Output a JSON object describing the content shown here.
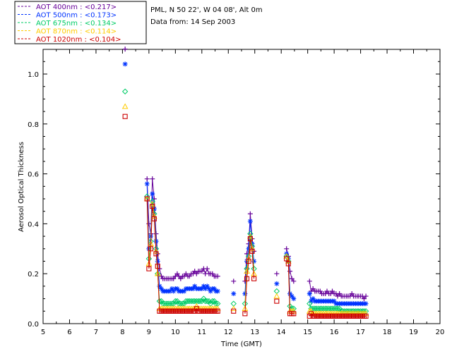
{
  "header": {
    "station": "PML, N 50 22', W 04 08', Alt 0m",
    "date_line": "Data from: 14 Sep 2003"
  },
  "chart_data": {
    "type": "scatter",
    "xlabel": "Time (GMT)",
    "ylabel": "Aerosol Optical Thickness",
    "xlim": [
      5,
      20
    ],
    "ylim": [
      0,
      1.1
    ],
    "xticks": [
      "5",
      "6",
      "7",
      "8",
      "9",
      "10",
      "11",
      "12",
      "13",
      "14",
      "15",
      "16",
      "17",
      "18",
      "19",
      "20"
    ],
    "yticks": [
      "0.0",
      "0.2",
      "0.4",
      "0.6",
      "0.8",
      "1.0"
    ],
    "legend_position": "top-left, outside plot",
    "series": [
      {
        "name": "AOT  400nm : <0.217>",
        "color": "#660099",
        "marker": "plus",
        "x": [
          8.1,
          8.93,
          9.0,
          9.07,
          9.13,
          9.2,
          9.27,
          9.33,
          9.4,
          9.47,
          9.53,
          9.6,
          9.67,
          9.73,
          9.8,
          9.87,
          9.93,
          10.0,
          10.07,
          10.13,
          10.2,
          10.27,
          10.33,
          10.4,
          10.47,
          10.53,
          10.6,
          10.67,
          10.73,
          10.8,
          10.87,
          10.93,
          11.0,
          11.07,
          11.13,
          11.2,
          11.27,
          11.33,
          11.4,
          11.47,
          11.53,
          11.6,
          12.2,
          12.63,
          12.7,
          12.77,
          12.83,
          12.9,
          12.97,
          13.83,
          14.2,
          14.27,
          14.33,
          14.4,
          14.47,
          15.07,
          15.13,
          15.2,
          15.27,
          15.33,
          15.4,
          15.47,
          15.53,
          15.6,
          15.67,
          15.73,
          15.8,
          15.87,
          15.93,
          16.0,
          16.07,
          16.13,
          16.2,
          16.27,
          16.33,
          16.4,
          16.47,
          16.53,
          16.6,
          16.67,
          16.73,
          16.8,
          16.87,
          16.93,
          17.0,
          17.07,
          17.13,
          17.2
        ],
        "y": [
          1.1,
          0.58,
          0.4,
          0.36,
          0.58,
          0.5,
          0.36,
          0.28,
          0.22,
          0.19,
          0.18,
          0.18,
          0.18,
          0.18,
          0.18,
          0.18,
          0.18,
          0.19,
          0.2,
          0.19,
          0.18,
          0.19,
          0.19,
          0.2,
          0.19,
          0.19,
          0.2,
          0.2,
          0.21,
          0.2,
          0.21,
          0.21,
          0.21,
          0.22,
          0.2,
          0.22,
          0.2,
          0.2,
          0.2,
          0.19,
          0.19,
          0.19,
          0.17,
          0.17,
          0.28,
          0.32,
          0.44,
          0.34,
          0.29,
          0.2,
          0.3,
          0.27,
          0.21,
          0.18,
          0.17,
          0.17,
          0.13,
          0.14,
          0.13,
          0.13,
          0.13,
          0.13,
          0.12,
          0.12,
          0.12,
          0.13,
          0.12,
          0.12,
          0.13,
          0.12,
          0.12,
          0.11,
          0.12,
          0.11,
          0.11,
          0.11,
          0.11,
          0.11,
          0.11,
          0.12,
          0.11,
          0.11,
          0.11,
          0.11,
          0.11,
          0.11,
          0.1,
          0.11
        ]
      },
      {
        "name": "AOT  500nm : <0.173>",
        "color": "#0033ff",
        "marker": "asterisk",
        "x": [
          8.1,
          8.93,
          9.0,
          9.07,
          9.13,
          9.2,
          9.27,
          9.33,
          9.4,
          9.47,
          9.53,
          9.6,
          9.67,
          9.73,
          9.8,
          9.87,
          9.93,
          10.0,
          10.07,
          10.13,
          10.2,
          10.27,
          10.33,
          10.4,
          10.47,
          10.53,
          10.6,
          10.67,
          10.73,
          10.8,
          10.87,
          10.93,
          11.0,
          11.07,
          11.13,
          11.2,
          11.27,
          11.33,
          11.4,
          11.47,
          11.53,
          11.6,
          12.2,
          12.63,
          12.7,
          12.77,
          12.83,
          12.9,
          12.97,
          13.83,
          14.2,
          14.27,
          14.33,
          14.4,
          14.47,
          15.07,
          15.13,
          15.2,
          15.27,
          15.33,
          15.4,
          15.47,
          15.53,
          15.6,
          15.67,
          15.73,
          15.8,
          15.87,
          15.93,
          16.0,
          16.07,
          16.13,
          16.2,
          16.27,
          16.33,
          16.4,
          16.47,
          16.53,
          16.6,
          16.67,
          16.73,
          16.8,
          16.87,
          16.93,
          17.0,
          17.07,
          17.13,
          17.2
        ],
        "y": [
          1.04,
          0.56,
          0.3,
          0.35,
          0.52,
          0.46,
          0.33,
          0.25,
          0.15,
          0.14,
          0.13,
          0.13,
          0.13,
          0.13,
          0.13,
          0.14,
          0.13,
          0.14,
          0.14,
          0.13,
          0.13,
          0.13,
          0.13,
          0.14,
          0.14,
          0.14,
          0.14,
          0.14,
          0.15,
          0.14,
          0.14,
          0.14,
          0.14,
          0.15,
          0.14,
          0.15,
          0.14,
          0.13,
          0.14,
          0.14,
          0.13,
          0.13,
          0.12,
          0.12,
          0.25,
          0.3,
          0.41,
          0.32,
          0.25,
          0.16,
          0.28,
          0.26,
          0.12,
          0.11,
          0.1,
          0.12,
          0.09,
          0.1,
          0.09,
          0.09,
          0.09,
          0.09,
          0.09,
          0.09,
          0.09,
          0.09,
          0.09,
          0.09,
          0.09,
          0.09,
          0.08,
          0.08,
          0.08,
          0.08,
          0.08,
          0.08,
          0.08,
          0.08,
          0.08,
          0.08,
          0.08,
          0.08,
          0.08,
          0.08,
          0.08,
          0.08,
          0.08,
          0.08
        ]
      },
      {
        "name": "AOT  675nm : <0.134>",
        "color": "#00cc66",
        "marker": "diamond",
        "x": [
          8.1,
          8.93,
          9.0,
          9.07,
          9.13,
          9.2,
          9.27,
          9.33,
          9.4,
          9.47,
          9.53,
          9.6,
          9.67,
          9.73,
          9.8,
          9.87,
          9.93,
          10.0,
          10.07,
          10.13,
          10.2,
          10.27,
          10.33,
          10.4,
          10.47,
          10.53,
          10.6,
          10.67,
          10.73,
          10.8,
          10.87,
          10.93,
          11.0,
          11.07,
          11.13,
          11.2,
          11.27,
          11.33,
          11.4,
          11.47,
          11.53,
          11.6,
          12.2,
          12.63,
          12.7,
          12.77,
          12.83,
          12.9,
          12.97,
          13.83,
          14.2,
          14.27,
          14.33,
          14.4,
          14.47,
          15.07,
          15.13,
          15.2,
          15.27,
          15.33,
          15.4,
          15.47,
          15.53,
          15.6,
          15.67,
          15.73,
          15.8,
          15.87,
          15.93,
          16.0,
          16.07,
          16.13,
          16.2,
          16.27,
          16.33,
          16.4,
          16.47,
          16.53,
          16.6,
          16.67,
          16.73,
          16.8,
          16.87,
          16.93,
          17.0,
          17.07,
          17.13,
          17.2
        ],
        "y": [
          0.93,
          0.51,
          0.26,
          0.33,
          0.49,
          0.44,
          0.3,
          0.2,
          0.09,
          0.09,
          0.08,
          0.08,
          0.08,
          0.08,
          0.08,
          0.08,
          0.08,
          0.09,
          0.09,
          0.08,
          0.08,
          0.08,
          0.08,
          0.09,
          0.09,
          0.09,
          0.09,
          0.09,
          0.09,
          0.09,
          0.09,
          0.09,
          0.09,
          0.1,
          0.09,
          0.09,
          0.09,
          0.08,
          0.09,
          0.09,
          0.08,
          0.08,
          0.08,
          0.08,
          0.22,
          0.27,
          0.36,
          0.31,
          0.22,
          0.13,
          0.27,
          0.25,
          0.07,
          0.06,
          0.06,
          0.08,
          0.06,
          0.06,
          0.06,
          0.06,
          0.06,
          0.06,
          0.06,
          0.06,
          0.06,
          0.06,
          0.06,
          0.06,
          0.06,
          0.06,
          0.06,
          0.06,
          0.06,
          0.05,
          0.05,
          0.05,
          0.05,
          0.05,
          0.05,
          0.05,
          0.05,
          0.05,
          0.05,
          0.05,
          0.05,
          0.05,
          0.05,
          0.05
        ]
      },
      {
        "name": "AOT  870nm : <0.114>",
        "color": "#ffcc00",
        "marker": "triangle",
        "x": [
          8.1,
          8.93,
          9.0,
          9.07,
          9.13,
          9.2,
          9.27,
          9.33,
          9.4,
          9.47,
          9.53,
          9.6,
          9.67,
          9.73,
          9.8,
          9.87,
          9.93,
          10.0,
          10.07,
          10.13,
          10.2,
          10.27,
          10.33,
          10.4,
          10.47,
          10.53,
          10.6,
          10.67,
          10.73,
          10.8,
          10.87,
          10.93,
          11.0,
          11.07,
          11.13,
          11.2,
          11.27,
          11.33,
          11.4,
          11.47,
          11.53,
          11.6,
          12.2,
          12.63,
          12.7,
          12.77,
          12.83,
          12.9,
          12.97,
          13.83,
          14.2,
          14.27,
          14.33,
          14.4,
          14.47,
          15.07,
          15.13,
          15.2,
          15.27,
          15.33,
          15.4,
          15.47,
          15.53,
          15.6,
          15.67,
          15.73,
          15.8,
          15.87,
          15.93,
          16.0,
          16.07,
          16.13,
          16.2,
          16.27,
          16.33,
          16.4,
          16.47,
          16.53,
          16.6,
          16.67,
          16.73,
          16.8,
          16.87,
          16.93,
          17.0,
          17.07,
          17.13,
          17.2
        ],
        "y": [
          0.87,
          0.5,
          0.24,
          0.32,
          0.48,
          0.43,
          0.29,
          0.2,
          0.06,
          0.06,
          0.06,
          0.06,
          0.06,
          0.06,
          0.06,
          0.06,
          0.06,
          0.06,
          0.06,
          0.06,
          0.06,
          0.06,
          0.06,
          0.06,
          0.06,
          0.06,
          0.06,
          0.06,
          0.06,
          0.07,
          0.06,
          0.06,
          0.06,
          0.06,
          0.06,
          0.06,
          0.06,
          0.06,
          0.06,
          0.06,
          0.06,
          0.06,
          0.06,
          0.06,
          0.21,
          0.26,
          0.35,
          0.3,
          0.2,
          0.11,
          0.27,
          0.25,
          0.05,
          0.05,
          0.05,
          0.05,
          0.05,
          0.04,
          0.04,
          0.04,
          0.04,
          0.04,
          0.04,
          0.04,
          0.04,
          0.04,
          0.04,
          0.04,
          0.04,
          0.04,
          0.04,
          0.04,
          0.04,
          0.04,
          0.04,
          0.04,
          0.04,
          0.04,
          0.04,
          0.04,
          0.04,
          0.04,
          0.04,
          0.04,
          0.04,
          0.04,
          0.04,
          0.04
        ]
      },
      {
        "name": "AOT 1020nm : <0.104>",
        "color": "#cc0000",
        "marker": "square",
        "x": [
          8.1,
          8.93,
          9.0,
          9.07,
          9.13,
          9.2,
          9.27,
          9.33,
          9.4,
          9.47,
          9.53,
          9.6,
          9.67,
          9.73,
          9.8,
          9.87,
          9.93,
          10.0,
          10.07,
          10.13,
          10.2,
          10.27,
          10.33,
          10.4,
          10.47,
          10.53,
          10.6,
          10.67,
          10.73,
          10.8,
          10.87,
          10.93,
          11.0,
          11.07,
          11.13,
          11.2,
          11.27,
          11.33,
          11.4,
          11.47,
          11.53,
          11.6,
          12.2,
          12.63,
          12.7,
          12.77,
          12.83,
          12.9,
          12.97,
          13.83,
          14.2,
          14.27,
          14.33,
          14.4,
          14.47,
          15.07,
          15.13,
          15.2,
          15.27,
          15.33,
          15.4,
          15.47,
          15.53,
          15.6,
          15.67,
          15.73,
          15.8,
          15.87,
          15.93,
          16.0,
          16.07,
          16.13,
          16.2,
          16.27,
          16.33,
          16.4,
          16.47,
          16.53,
          16.6,
          16.67,
          16.73,
          16.8,
          16.87,
          16.93,
          17.0,
          17.07,
          17.13,
          17.2
        ],
        "y": [
          0.83,
          0.5,
          0.22,
          0.3,
          0.47,
          0.42,
          0.28,
          0.23,
          0.05,
          0.05,
          0.05,
          0.05,
          0.05,
          0.05,
          0.05,
          0.05,
          0.05,
          0.05,
          0.05,
          0.05,
          0.05,
          0.05,
          0.05,
          0.05,
          0.05,
          0.05,
          0.05,
          0.05,
          0.05,
          0.06,
          0.05,
          0.05,
          0.05,
          0.05,
          0.05,
          0.05,
          0.05,
          0.05,
          0.05,
          0.05,
          0.05,
          0.05,
          0.05,
          0.04,
          0.18,
          0.25,
          0.34,
          0.29,
          0.18,
          0.09,
          0.26,
          0.24,
          0.04,
          0.04,
          0.04,
          0.03,
          0.04,
          0.03,
          0.03,
          0.03,
          0.03,
          0.03,
          0.03,
          0.03,
          0.03,
          0.03,
          0.03,
          0.03,
          0.03,
          0.03,
          0.03,
          0.03,
          0.03,
          0.03,
          0.03,
          0.03,
          0.03,
          0.03,
          0.03,
          0.03,
          0.03,
          0.03,
          0.03,
          0.03,
          0.03,
          0.03,
          0.03,
          0.03
        ]
      }
    ]
  }
}
